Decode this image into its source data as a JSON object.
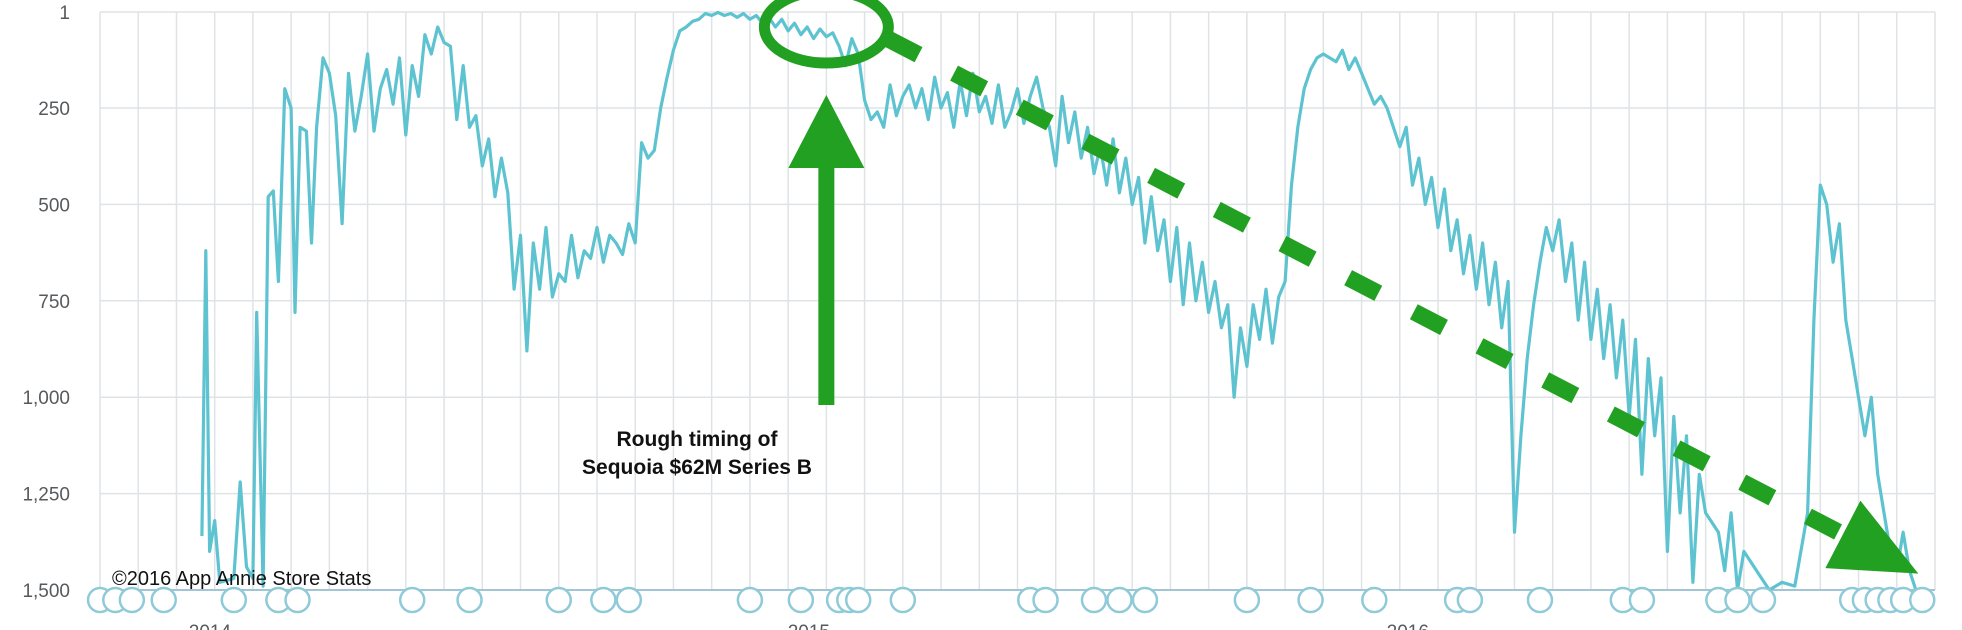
{
  "chart_data": {
    "type": "line",
    "title": "",
    "xlabel": "",
    "ylabel": "",
    "y_axis_inverted": true,
    "ylim": [
      1,
      1500
    ],
    "grid": true,
    "yticks": [
      {
        "value": 1,
        "label": "1"
      },
      {
        "value": 250,
        "label": "250"
      },
      {
        "value": 500,
        "label": "500"
      },
      {
        "value": 750,
        "label": "750"
      },
      {
        "value": 1000,
        "label": "1,000"
      },
      {
        "value": 1250,
        "label": "1,250"
      },
      {
        "value": 1500,
        "label": "1,500"
      }
    ],
    "xticks": [
      "2014",
      "2015",
      "2016"
    ],
    "x_unit": "week index (0 = start of visible range)",
    "xlim": [
      0,
      144
    ],
    "year_start_weeks": [
      8,
      55,
      102
    ],
    "series": [
      {
        "color": "#5ec3d0",
        "points": [
          [
            8,
            1360
          ],
          [
            8.3,
            620
          ],
          [
            8.6,
            1400
          ],
          [
            9,
            1320
          ],
          [
            9.4,
            1480
          ],
          [
            10.5,
            1470
          ],
          [
            11,
            1220
          ],
          [
            11.5,
            1440
          ],
          [
            12,
            1470
          ],
          [
            12.3,
            780
          ],
          [
            12.8,
            1490
          ],
          [
            13.2,
            480
          ],
          [
            13.6,
            465
          ],
          [
            14,
            700
          ],
          [
            14.5,
            200
          ],
          [
            15,
            250
          ],
          [
            15.3,
            780
          ],
          [
            15.7,
            300
          ],
          [
            16.2,
            310
          ],
          [
            16.6,
            600
          ],
          [
            17,
            300
          ],
          [
            17.5,
            120
          ],
          [
            18,
            160
          ],
          [
            18.5,
            270
          ],
          [
            19,
            550
          ],
          [
            19.5,
            160
          ],
          [
            20,
            310
          ],
          [
            20.5,
            220
          ],
          [
            21,
            110
          ],
          [
            21.5,
            310
          ],
          [
            22,
            200
          ],
          [
            22.5,
            150
          ],
          [
            23,
            240
          ],
          [
            23.5,
            120
          ],
          [
            24,
            320
          ],
          [
            24.5,
            140
          ],
          [
            25,
            220
          ],
          [
            25.5,
            60
          ],
          [
            26,
            110
          ],
          [
            26.5,
            40
          ],
          [
            27,
            80
          ],
          [
            27.5,
            90
          ],
          [
            28,
            280
          ],
          [
            28.5,
            140
          ],
          [
            29,
            300
          ],
          [
            29.5,
            270
          ],
          [
            30,
            400
          ],
          [
            30.5,
            330
          ],
          [
            31,
            480
          ],
          [
            31.5,
            380
          ],
          [
            32,
            470
          ],
          [
            32.5,
            720
          ],
          [
            33,
            580
          ],
          [
            33.5,
            880
          ],
          [
            34,
            600
          ],
          [
            34.5,
            720
          ],
          [
            35,
            560
          ],
          [
            35.5,
            740
          ],
          [
            36,
            680
          ],
          [
            36.5,
            700
          ],
          [
            37,
            580
          ],
          [
            37.5,
            690
          ],
          [
            38,
            620
          ],
          [
            38.5,
            640
          ],
          [
            39,
            560
          ],
          [
            39.5,
            650
          ],
          [
            40,
            580
          ],
          [
            40.5,
            600
          ],
          [
            41,
            630
          ],
          [
            41.5,
            550
          ],
          [
            42,
            600
          ],
          [
            42.5,
            340
          ],
          [
            43,
            380
          ],
          [
            43.5,
            360
          ],
          [
            44,
            250
          ],
          [
            44.5,
            170
          ],
          [
            45,
            100
          ],
          [
            45.5,
            50
          ],
          [
            46,
            40
          ],
          [
            46.5,
            25
          ],
          [
            47,
            20
          ],
          [
            47.5,
            5
          ],
          [
            48,
            10
          ],
          [
            48.5,
            2
          ],
          [
            49,
            10
          ],
          [
            49.5,
            5
          ],
          [
            50,
            15
          ],
          [
            50.5,
            5
          ],
          [
            51,
            20
          ],
          [
            51.5,
            10
          ],
          [
            52,
            30
          ],
          [
            52.5,
            15
          ],
          [
            53,
            40
          ],
          [
            53.5,
            20
          ],
          [
            54,
            50
          ],
          [
            54.5,
            30
          ],
          [
            55,
            60
          ],
          [
            55.5,
            40
          ],
          [
            56,
            70
          ],
          [
            56.5,
            45
          ],
          [
            57,
            65
          ],
          [
            57.5,
            55
          ],
          [
            58,
            90
          ],
          [
            58.5,
            140
          ],
          [
            59,
            70
          ],
          [
            59.5,
            110
          ],
          [
            60,
            230
          ],
          [
            60.5,
            280
          ],
          [
            61,
            260
          ],
          [
            61.5,
            300
          ],
          [
            62,
            190
          ],
          [
            62.5,
            270
          ],
          [
            63,
            220
          ],
          [
            63.5,
            190
          ],
          [
            64,
            250
          ],
          [
            64.5,
            200
          ],
          [
            65,
            280
          ],
          [
            65.5,
            170
          ],
          [
            66,
            250
          ],
          [
            66.5,
            210
          ],
          [
            67,
            300
          ],
          [
            67.5,
            180
          ],
          [
            68,
            270
          ],
          [
            68.5,
            160
          ],
          [
            69,
            260
          ],
          [
            69.5,
            220
          ],
          [
            70,
            290
          ],
          [
            70.5,
            190
          ],
          [
            71,
            300
          ],
          [
            71.5,
            260
          ],
          [
            72,
            200
          ],
          [
            72.5,
            290
          ],
          [
            73,
            220
          ],
          [
            73.5,
            170
          ],
          [
            74,
            250
          ],
          [
            74.5,
            300
          ],
          [
            75,
            400
          ],
          [
            75.5,
            220
          ],
          [
            76,
            340
          ],
          [
            76.5,
            260
          ],
          [
            77,
            380
          ],
          [
            77.5,
            300
          ],
          [
            78,
            420
          ],
          [
            78.5,
            350
          ],
          [
            79,
            450
          ],
          [
            79.5,
            330
          ],
          [
            80,
            470
          ],
          [
            80.5,
            380
          ],
          [
            81,
            500
          ],
          [
            81.5,
            430
          ],
          [
            82,
            600
          ],
          [
            82.5,
            480
          ],
          [
            83,
            620
          ],
          [
            83.5,
            540
          ],
          [
            84,
            700
          ],
          [
            84.5,
            560
          ],
          [
            85,
            760
          ],
          [
            85.5,
            600
          ],
          [
            86,
            750
          ],
          [
            86.5,
            650
          ],
          [
            87,
            780
          ],
          [
            87.5,
            700
          ],
          [
            88,
            820
          ],
          [
            88.5,
            760
          ],
          [
            89,
            1000
          ],
          [
            89.5,
            820
          ],
          [
            90,
            920
          ],
          [
            90.5,
            760
          ],
          [
            91,
            850
          ],
          [
            91.5,
            720
          ],
          [
            92,
            860
          ],
          [
            92.5,
            740
          ],
          [
            93,
            700
          ],
          [
            93.5,
            450
          ],
          [
            94,
            300
          ],
          [
            94.5,
            200
          ],
          [
            95,
            150
          ],
          [
            95.5,
            120
          ],
          [
            96,
            110
          ],
          [
            96.5,
            120
          ],
          [
            97,
            130
          ],
          [
            97.5,
            100
          ],
          [
            98,
            150
          ],
          [
            98.5,
            120
          ],
          [
            99,
            160
          ],
          [
            99.5,
            200
          ],
          [
            100,
            240
          ],
          [
            100.5,
            220
          ],
          [
            101,
            250
          ],
          [
            101.5,
            300
          ],
          [
            102,
            350
          ],
          [
            102.5,
            300
          ],
          [
            103,
            450
          ],
          [
            103.5,
            380
          ],
          [
            104,
            500
          ],
          [
            104.5,
            430
          ],
          [
            105,
            560
          ],
          [
            105.5,
            460
          ],
          [
            106,
            620
          ],
          [
            106.5,
            540
          ],
          [
            107,
            680
          ],
          [
            107.5,
            580
          ],
          [
            108,
            720
          ],
          [
            108.5,
            600
          ],
          [
            109,
            760
          ],
          [
            109.5,
            650
          ],
          [
            110,
            820
          ],
          [
            110.5,
            700
          ],
          [
            111,
            1350
          ],
          [
            111.5,
            1100
          ],
          [
            112,
            900
          ],
          [
            112.5,
            760
          ],
          [
            113,
            650
          ],
          [
            113.5,
            560
          ],
          [
            114,
            620
          ],
          [
            114.5,
            540
          ],
          [
            115,
            700
          ],
          [
            115.5,
            600
          ],
          [
            116,
            800
          ],
          [
            116.5,
            650
          ],
          [
            117,
            850
          ],
          [
            117.5,
            720
          ],
          [
            118,
            900
          ],
          [
            118.5,
            760
          ],
          [
            119,
            950
          ],
          [
            119.5,
            800
          ],
          [
            120,
            1050
          ],
          [
            120.5,
            850
          ],
          [
            121,
            1200
          ],
          [
            121.5,
            900
          ],
          [
            122,
            1100
          ],
          [
            122.5,
            950
          ],
          [
            123,
            1400
          ],
          [
            123.5,
            1050
          ],
          [
            124,
            1300
          ],
          [
            124.5,
            1100
          ],
          [
            125,
            1480
          ],
          [
            125.5,
            1200
          ],
          [
            126,
            1300
          ],
          [
            127,
            1350
          ],
          [
            127.5,
            1450
          ],
          [
            128,
            1300
          ],
          [
            128.5,
            1500
          ],
          [
            129,
            1400
          ],
          [
            130,
            1450
          ],
          [
            131,
            1500
          ],
          [
            132,
            1480
          ],
          [
            133,
            1490
          ],
          [
            134,
            1300
          ],
          [
            134.5,
            800
          ],
          [
            135,
            450
          ],
          [
            135.5,
            500
          ],
          [
            136,
            650
          ],
          [
            136.5,
            550
          ],
          [
            137,
            800
          ],
          [
            137.5,
            900
          ],
          [
            138,
            1000
          ],
          [
            138.5,
            1100
          ],
          [
            139,
            1000
          ],
          [
            139.5,
            1200
          ],
          [
            140,
            1300
          ],
          [
            140.5,
            1400
          ],
          [
            141,
            1450
          ],
          [
            141.5,
            1350
          ],
          [
            142,
            1450
          ],
          [
            142.5,
            1500
          ]
        ]
      }
    ],
    "annotations": [
      {
        "text_lines": [
          "Rough timing of",
          "Sequoia $62M Series B"
        ],
        "arrow": "up",
        "week": 57,
        "color": "#22a021"
      },
      {
        "type": "circle",
        "week": 57,
        "value": 40,
        "color": "#22a021"
      },
      {
        "type": "dashed-trend-arrow",
        "from": [
          57,
          40
        ],
        "to": [
          143,
          1400
        ],
        "color": "#22a021"
      }
    ]
  },
  "copyright": "©2016 App Annie Store Stats"
}
